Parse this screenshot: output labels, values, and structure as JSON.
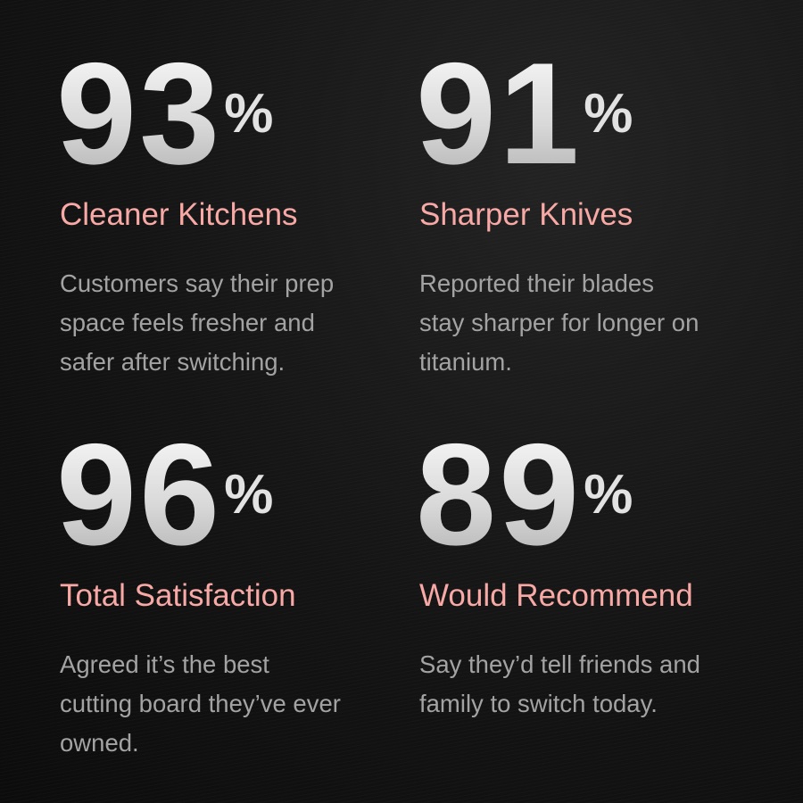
{
  "colors": {
    "accent": "#f8a9a6",
    "body_text": "#a3a3a3",
    "number": "#e2e2e2",
    "background": "#141414"
  },
  "stats": [
    {
      "value": "93",
      "unit": "%",
      "title": "Cleaner Kitchens",
      "lines": [
        "Customers say their prep",
        "space feels fresher and",
        "safer after switching."
      ]
    },
    {
      "value": "91",
      "unit": "%",
      "title": "Sharper Knives",
      "lines": [
        "Reported their blades",
        "stay sharper for longer on",
        "titanium."
      ]
    },
    {
      "value": "96",
      "unit": "%",
      "title": "Total Satisfaction",
      "lines": [
        "Agreed it’s the best",
        "cutting board they’ve ever",
        "owned."
      ]
    },
    {
      "value": "89",
      "unit": "%",
      "title": "Would Recommend",
      "lines": [
        "Say they’d tell friends and",
        "family to switch today."
      ]
    }
  ]
}
